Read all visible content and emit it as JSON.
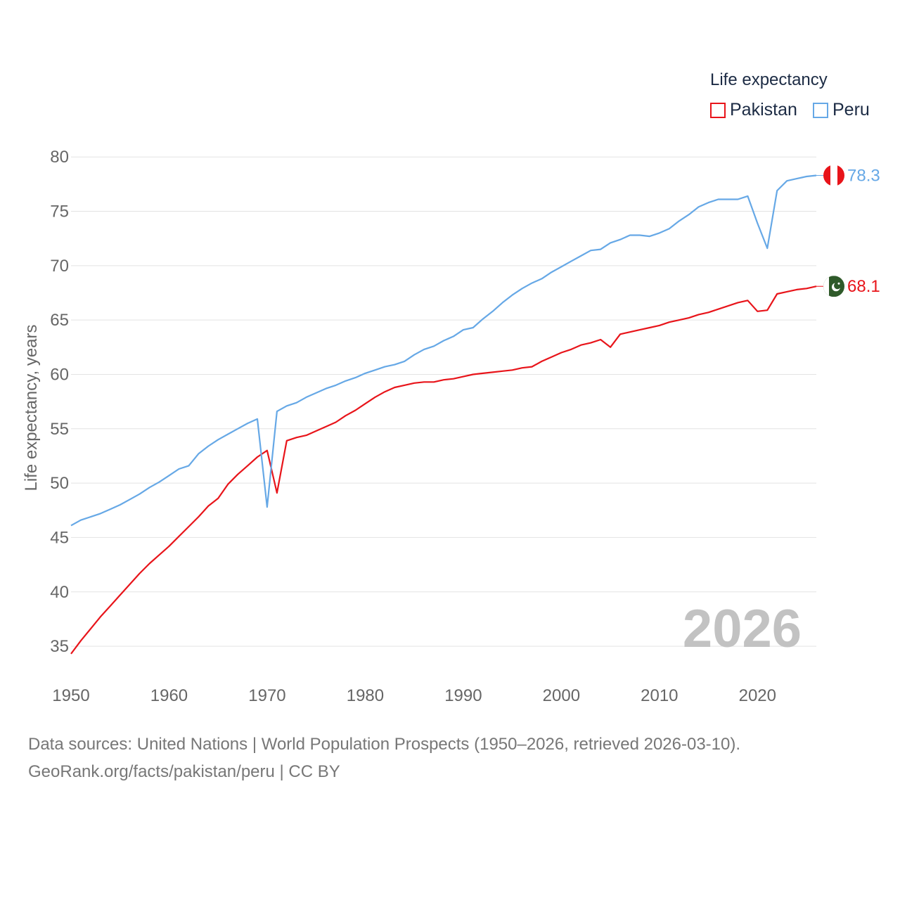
{
  "legend": {
    "title": "Life expectancy",
    "items": [
      {
        "name": "Pakistan",
        "color": "#e8141a"
      },
      {
        "name": "Peru",
        "color": "#66a8e6"
      }
    ]
  },
  "year_watermark": "2026",
  "footer": {
    "line1": "Data sources: United Nations | World Population Prospects (1950–2026, retrieved 2026-03-10).",
    "line2": "GeoRank.org/facts/pakistan/peru | CC BY"
  },
  "chart_data": {
    "type": "line",
    "title": "Life expectancy",
    "xlabel": "",
    "ylabel": "Life expectancy, years",
    "xlim": [
      1950,
      2026
    ],
    "ylim": [
      33,
      81.5
    ],
    "x_ticks": [
      1950,
      1960,
      1970,
      1980,
      1990,
      2000,
      2010,
      2020
    ],
    "y_ticks": [
      35,
      40,
      45,
      50,
      55,
      60,
      65,
      70,
      75,
      80
    ],
    "grid": true,
    "legend_position": "top-right",
    "series": [
      {
        "name": "Pakistan",
        "color": "#e8141a",
        "end_label": "68.1",
        "flag": "pakistan-flag",
        "points": [
          [
            1950,
            34.3
          ],
          [
            1951,
            35.5
          ],
          [
            1952,
            36.6
          ],
          [
            1953,
            37.7
          ],
          [
            1954,
            38.7
          ],
          [
            1955,
            39.7
          ],
          [
            1956,
            40.7
          ],
          [
            1957,
            41.7
          ],
          [
            1958,
            42.6
          ],
          [
            1959,
            43.4
          ],
          [
            1960,
            44.2
          ],
          [
            1961,
            45.1
          ],
          [
            1962,
            46.0
          ],
          [
            1963,
            46.9
          ],
          [
            1964,
            47.9
          ],
          [
            1965,
            48.6
          ],
          [
            1966,
            49.9
          ],
          [
            1967,
            50.8
          ],
          [
            1968,
            51.6
          ],
          [
            1969,
            52.4
          ],
          [
            1970,
            53.0
          ],
          [
            1971,
            49.1
          ],
          [
            1972,
            53.9
          ],
          [
            1973,
            54.2
          ],
          [
            1974,
            54.4
          ],
          [
            1975,
            54.8
          ],
          [
            1976,
            55.2
          ],
          [
            1977,
            55.6
          ],
          [
            1978,
            56.2
          ],
          [
            1979,
            56.7
          ],
          [
            1980,
            57.3
          ],
          [
            1981,
            57.9
          ],
          [
            1982,
            58.4
          ],
          [
            1983,
            58.8
          ],
          [
            1984,
            59.0
          ],
          [
            1985,
            59.2
          ],
          [
            1986,
            59.3
          ],
          [
            1987,
            59.3
          ],
          [
            1988,
            59.5
          ],
          [
            1989,
            59.6
          ],
          [
            1990,
            59.8
          ],
          [
            1991,
            60.0
          ],
          [
            1992,
            60.1
          ],
          [
            1993,
            60.2
          ],
          [
            1994,
            60.3
          ],
          [
            1995,
            60.4
          ],
          [
            1996,
            60.6
          ],
          [
            1997,
            60.7
          ],
          [
            1998,
            61.2
          ],
          [
            1999,
            61.6
          ],
          [
            2000,
            62.0
          ],
          [
            2001,
            62.3
          ],
          [
            2002,
            62.7
          ],
          [
            2003,
            62.9
          ],
          [
            2004,
            63.2
          ],
          [
            2005,
            62.5
          ],
          [
            2006,
            63.7
          ],
          [
            2007,
            63.9
          ],
          [
            2008,
            64.1
          ],
          [
            2009,
            64.3
          ],
          [
            2010,
            64.5
          ],
          [
            2011,
            64.8
          ],
          [
            2012,
            65.0
          ],
          [
            2013,
            65.2
          ],
          [
            2014,
            65.5
          ],
          [
            2015,
            65.7
          ],
          [
            2016,
            66.0
          ],
          [
            2017,
            66.3
          ],
          [
            2018,
            66.6
          ],
          [
            2019,
            66.8
          ],
          [
            2020,
            65.8
          ],
          [
            2021,
            65.9
          ],
          [
            2022,
            67.4
          ],
          [
            2023,
            67.6
          ],
          [
            2024,
            67.8
          ],
          [
            2025,
            67.9
          ],
          [
            2026,
            68.1
          ]
        ]
      },
      {
        "name": "Peru",
        "color": "#66a8e6",
        "end_label": "78.3",
        "flag": "peru-flag",
        "points": [
          [
            1950,
            46.1
          ],
          [
            1951,
            46.6
          ],
          [
            1952,
            46.9
          ],
          [
            1953,
            47.2
          ],
          [
            1954,
            47.6
          ],
          [
            1955,
            48.0
          ],
          [
            1956,
            48.5
          ],
          [
            1957,
            49.0
          ],
          [
            1958,
            49.6
          ],
          [
            1959,
            50.1
          ],
          [
            1960,
            50.7
          ],
          [
            1961,
            51.3
          ],
          [
            1962,
            51.6
          ],
          [
            1963,
            52.7
          ],
          [
            1964,
            53.4
          ],
          [
            1965,
            54.0
          ],
          [
            1966,
            54.5
          ],
          [
            1967,
            55.0
          ],
          [
            1968,
            55.5
          ],
          [
            1969,
            55.9
          ],
          [
            1970,
            47.8
          ],
          [
            1971,
            56.6
          ],
          [
            1972,
            57.1
          ],
          [
            1973,
            57.4
          ],
          [
            1974,
            57.9
          ],
          [
            1975,
            58.3
          ],
          [
            1976,
            58.7
          ],
          [
            1977,
            59.0
          ],
          [
            1978,
            59.4
          ],
          [
            1979,
            59.7
          ],
          [
            1980,
            60.1
          ],
          [
            1981,
            60.4
          ],
          [
            1982,
            60.7
          ],
          [
            1983,
            60.9
          ],
          [
            1984,
            61.2
          ],
          [
            1985,
            61.8
          ],
          [
            1986,
            62.3
          ],
          [
            1987,
            62.6
          ],
          [
            1988,
            63.1
          ],
          [
            1989,
            63.5
          ],
          [
            1990,
            64.1
          ],
          [
            1991,
            64.3
          ],
          [
            1992,
            65.1
          ],
          [
            1993,
            65.8
          ],
          [
            1994,
            66.6
          ],
          [
            1995,
            67.3
          ],
          [
            1996,
            67.9
          ],
          [
            1997,
            68.4
          ],
          [
            1998,
            68.8
          ],
          [
            1999,
            69.4
          ],
          [
            2000,
            69.9
          ],
          [
            2001,
            70.4
          ],
          [
            2002,
            70.9
          ],
          [
            2003,
            71.4
          ],
          [
            2004,
            71.5
          ],
          [
            2005,
            72.1
          ],
          [
            2006,
            72.4
          ],
          [
            2007,
            72.8
          ],
          [
            2008,
            72.8
          ],
          [
            2009,
            72.7
          ],
          [
            2010,
            73.0
          ],
          [
            2011,
            73.4
          ],
          [
            2012,
            74.1
          ],
          [
            2013,
            74.7
          ],
          [
            2014,
            75.4
          ],
          [
            2015,
            75.8
          ],
          [
            2016,
            76.1
          ],
          [
            2017,
            76.1
          ],
          [
            2018,
            76.1
          ],
          [
            2019,
            76.4
          ],
          [
            2020,
            73.9
          ],
          [
            2021,
            71.6
          ],
          [
            2022,
            76.9
          ],
          [
            2023,
            77.8
          ],
          [
            2024,
            78.0
          ],
          [
            2025,
            78.2
          ],
          [
            2026,
            78.3
          ]
        ]
      }
    ]
  }
}
